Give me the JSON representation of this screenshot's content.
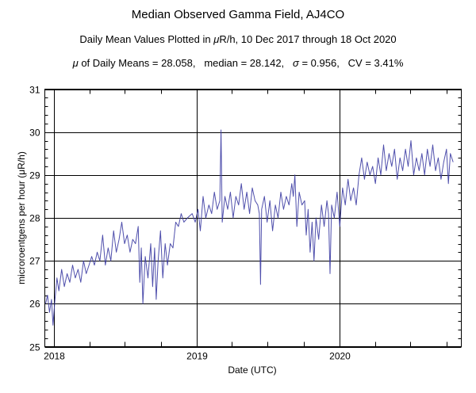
{
  "chart_data": {
    "type": "line",
    "title": "Median Observed Gamma Field, AJ4CO",
    "subtitle": {
      "pre": "Daily Mean Values Plotted in ",
      "mu": "μ",
      "post": "R/h, 10 Dec 2017 through 18 Oct 2020"
    },
    "stats": {
      "mu_symbol": "μ",
      "mean_label": " of Daily Means = ",
      "mean": "28.058",
      "median_label": ",   median = ",
      "median": "28.142",
      "sigma_sep": ",   ",
      "sigma_symbol": "σ",
      "sigma_label": " = ",
      "sigma": "0.956",
      "cv_label": ",   CV = ",
      "cv": "3.41%"
    },
    "xlabel": "Date (UTC)",
    "ylabel": "microroentgens per hour (μR/h)",
    "xlim": [
      "2017-12-08",
      "2020-11-08"
    ],
    "ylim": [
      25,
      31
    ],
    "x_ticks": [
      "2018",
      "2019",
      "2020"
    ],
    "y_ticks": [
      "25",
      "26",
      "27",
      "28",
      "29",
      "30",
      "31"
    ],
    "grid": true,
    "line_color": "#3c3ca3",
    "series": [
      {
        "points": [
          [
            "2017-12-10",
            26.0
          ],
          [
            "2017-12-15",
            26.2
          ],
          [
            "2017-12-20",
            25.8
          ],
          [
            "2017-12-25",
            26.1
          ],
          [
            "2017-12-29",
            25.5
          ],
          [
            "2018-01-03",
            26.1
          ],
          [
            "2018-01-08",
            26.6
          ],
          [
            "2018-01-13",
            26.3
          ],
          [
            "2018-01-20",
            26.8
          ],
          [
            "2018-01-27",
            26.4
          ],
          [
            "2018-02-03",
            26.7
          ],
          [
            "2018-02-10",
            26.5
          ],
          [
            "2018-02-17",
            26.9
          ],
          [
            "2018-02-24",
            26.6
          ],
          [
            "2018-03-03",
            26.8
          ],
          [
            "2018-03-10",
            26.5
          ],
          [
            "2018-03-17",
            27.0
          ],
          [
            "2018-03-24",
            26.7
          ],
          [
            "2018-03-31",
            26.9
          ],
          [
            "2018-04-07",
            27.1
          ],
          [
            "2018-04-14",
            26.9
          ],
          [
            "2018-04-21",
            27.2
          ],
          [
            "2018-04-28",
            27.0
          ],
          [
            "2018-05-05",
            27.6
          ],
          [
            "2018-05-12",
            26.9
          ],
          [
            "2018-05-19",
            27.3
          ],
          [
            "2018-05-26",
            27.0
          ],
          [
            "2018-06-02",
            27.7
          ],
          [
            "2018-06-09",
            27.2
          ],
          [
            "2018-06-16",
            27.5
          ],
          [
            "2018-06-23",
            27.9
          ],
          [
            "2018-06-30",
            27.4
          ],
          [
            "2018-07-07",
            27.6
          ],
          [
            "2018-07-14",
            27.2
          ],
          [
            "2018-07-21",
            27.5
          ],
          [
            "2018-07-28",
            27.4
          ],
          [
            "2018-08-04",
            27.8
          ],
          [
            "2018-08-08",
            26.5
          ],
          [
            "2018-08-12",
            27.3
          ],
          [
            "2018-08-16",
            26.0
          ],
          [
            "2018-08-22",
            27.1
          ],
          [
            "2018-08-29",
            26.6
          ],
          [
            "2018-09-05",
            27.4
          ],
          [
            "2018-09-10",
            26.4
          ],
          [
            "2018-09-15",
            27.3
          ],
          [
            "2018-09-19",
            26.1
          ],
          [
            "2018-09-24",
            27.0
          ],
          [
            "2018-09-30",
            27.7
          ],
          [
            "2018-10-06",
            26.6
          ],
          [
            "2018-10-12",
            27.4
          ],
          [
            "2018-10-18",
            26.9
          ],
          [
            "2018-10-25",
            27.4
          ],
          [
            "2018-11-01",
            27.3
          ],
          [
            "2018-11-08",
            27.9
          ],
          [
            "2018-11-15",
            27.8
          ],
          [
            "2018-11-22",
            28.1
          ],
          [
            "2018-11-29",
            27.9
          ],
          [
            "2018-12-08",
            28.0
          ],
          [
            "2018-12-20",
            28.1
          ],
          [
            "2018-12-28",
            27.9
          ],
          [
            "2019-01-04",
            28.2
          ],
          [
            "2019-01-10",
            27.7
          ],
          [
            "2019-01-17",
            28.5
          ],
          [
            "2019-01-24",
            28.0
          ],
          [
            "2019-02-01",
            28.3
          ],
          [
            "2019-02-08",
            28.1
          ],
          [
            "2019-02-15",
            28.6
          ],
          [
            "2019-02-22",
            28.2
          ],
          [
            "2019-03-01",
            28.4
          ],
          [
            "2019-03-04",
            30.05
          ],
          [
            "2019-03-07",
            27.9
          ],
          [
            "2019-03-14",
            28.5
          ],
          [
            "2019-03-21",
            28.2
          ],
          [
            "2019-03-28",
            28.6
          ],
          [
            "2019-04-04",
            28.0
          ],
          [
            "2019-04-11",
            28.5
          ],
          [
            "2019-04-18",
            28.3
          ],
          [
            "2019-04-25",
            28.8
          ],
          [
            "2019-05-02",
            28.2
          ],
          [
            "2019-05-09",
            28.6
          ],
          [
            "2019-05-16",
            28.1
          ],
          [
            "2019-05-23",
            28.7
          ],
          [
            "2019-05-30",
            28.4
          ],
          [
            "2019-06-06",
            28.3
          ],
          [
            "2019-06-10",
            28.1
          ],
          [
            "2019-06-13",
            26.45
          ],
          [
            "2019-06-16",
            28.2
          ],
          [
            "2019-06-23",
            28.5
          ],
          [
            "2019-06-30",
            27.9
          ],
          [
            "2019-07-07",
            28.4
          ],
          [
            "2019-07-14",
            27.7
          ],
          [
            "2019-07-21",
            28.3
          ],
          [
            "2019-07-28",
            28.0
          ],
          [
            "2019-08-04",
            28.6
          ],
          [
            "2019-08-11",
            28.2
          ],
          [
            "2019-08-18",
            28.5
          ],
          [
            "2019-08-25",
            28.3
          ],
          [
            "2019-09-01",
            28.8
          ],
          [
            "2019-09-05",
            28.5
          ],
          [
            "2019-09-09",
            29.0
          ],
          [
            "2019-09-14",
            27.8
          ],
          [
            "2019-09-20",
            28.6
          ],
          [
            "2019-09-27",
            28.3
          ],
          [
            "2019-10-04",
            28.4
          ],
          [
            "2019-10-08",
            27.6
          ],
          [
            "2019-10-13",
            28.2
          ],
          [
            "2019-10-18",
            27.2
          ],
          [
            "2019-10-23",
            27.9
          ],
          [
            "2019-10-28",
            27.0
          ],
          [
            "2019-11-02",
            28.0
          ],
          [
            "2019-11-09",
            27.5
          ],
          [
            "2019-11-16",
            28.3
          ],
          [
            "2019-11-23",
            27.8
          ],
          [
            "2019-11-30",
            28.4
          ],
          [
            "2019-12-04",
            28.1
          ],
          [
            "2019-12-08",
            26.7
          ],
          [
            "2019-12-12",
            28.3
          ],
          [
            "2019-12-19",
            28.0
          ],
          [
            "2019-12-26",
            28.6
          ],
          [
            "2020-01-02",
            27.8
          ],
          [
            "2020-01-09",
            28.7
          ],
          [
            "2020-01-16",
            28.3
          ],
          [
            "2020-01-23",
            28.9
          ],
          [
            "2020-01-30",
            28.4
          ],
          [
            "2020-02-06",
            28.7
          ],
          [
            "2020-02-13",
            28.3
          ],
          [
            "2020-02-20",
            29.0
          ],
          [
            "2020-02-27",
            29.4
          ],
          [
            "2020-03-05",
            28.9
          ],
          [
            "2020-03-12",
            29.3
          ],
          [
            "2020-03-19",
            29.0
          ],
          [
            "2020-03-26",
            29.2
          ],
          [
            "2020-04-02",
            28.8
          ],
          [
            "2020-04-09",
            29.4
          ],
          [
            "2020-04-16",
            29.0
          ],
          [
            "2020-04-23",
            29.7
          ],
          [
            "2020-04-30",
            29.1
          ],
          [
            "2020-05-07",
            29.5
          ],
          [
            "2020-05-14",
            29.2
          ],
          [
            "2020-05-21",
            29.6
          ],
          [
            "2020-05-28",
            28.9
          ],
          [
            "2020-06-04",
            29.4
          ],
          [
            "2020-06-11",
            29.1
          ],
          [
            "2020-06-18",
            29.6
          ],
          [
            "2020-06-25",
            29.2
          ],
          [
            "2020-07-02",
            29.8
          ],
          [
            "2020-07-09",
            29.0
          ],
          [
            "2020-07-16",
            29.4
          ],
          [
            "2020-07-23",
            29.1
          ],
          [
            "2020-07-30",
            29.5
          ],
          [
            "2020-08-06",
            29.0
          ],
          [
            "2020-08-13",
            29.6
          ],
          [
            "2020-08-20",
            29.2
          ],
          [
            "2020-08-27",
            29.7
          ],
          [
            "2020-09-03",
            29.1
          ],
          [
            "2020-09-10",
            29.4
          ],
          [
            "2020-09-17",
            28.9
          ],
          [
            "2020-09-24",
            29.3
          ],
          [
            "2020-10-01",
            29.6
          ],
          [
            "2020-10-06",
            28.8
          ],
          [
            "2020-10-11",
            29.5
          ],
          [
            "2020-10-18",
            29.3
          ]
        ]
      }
    ]
  }
}
